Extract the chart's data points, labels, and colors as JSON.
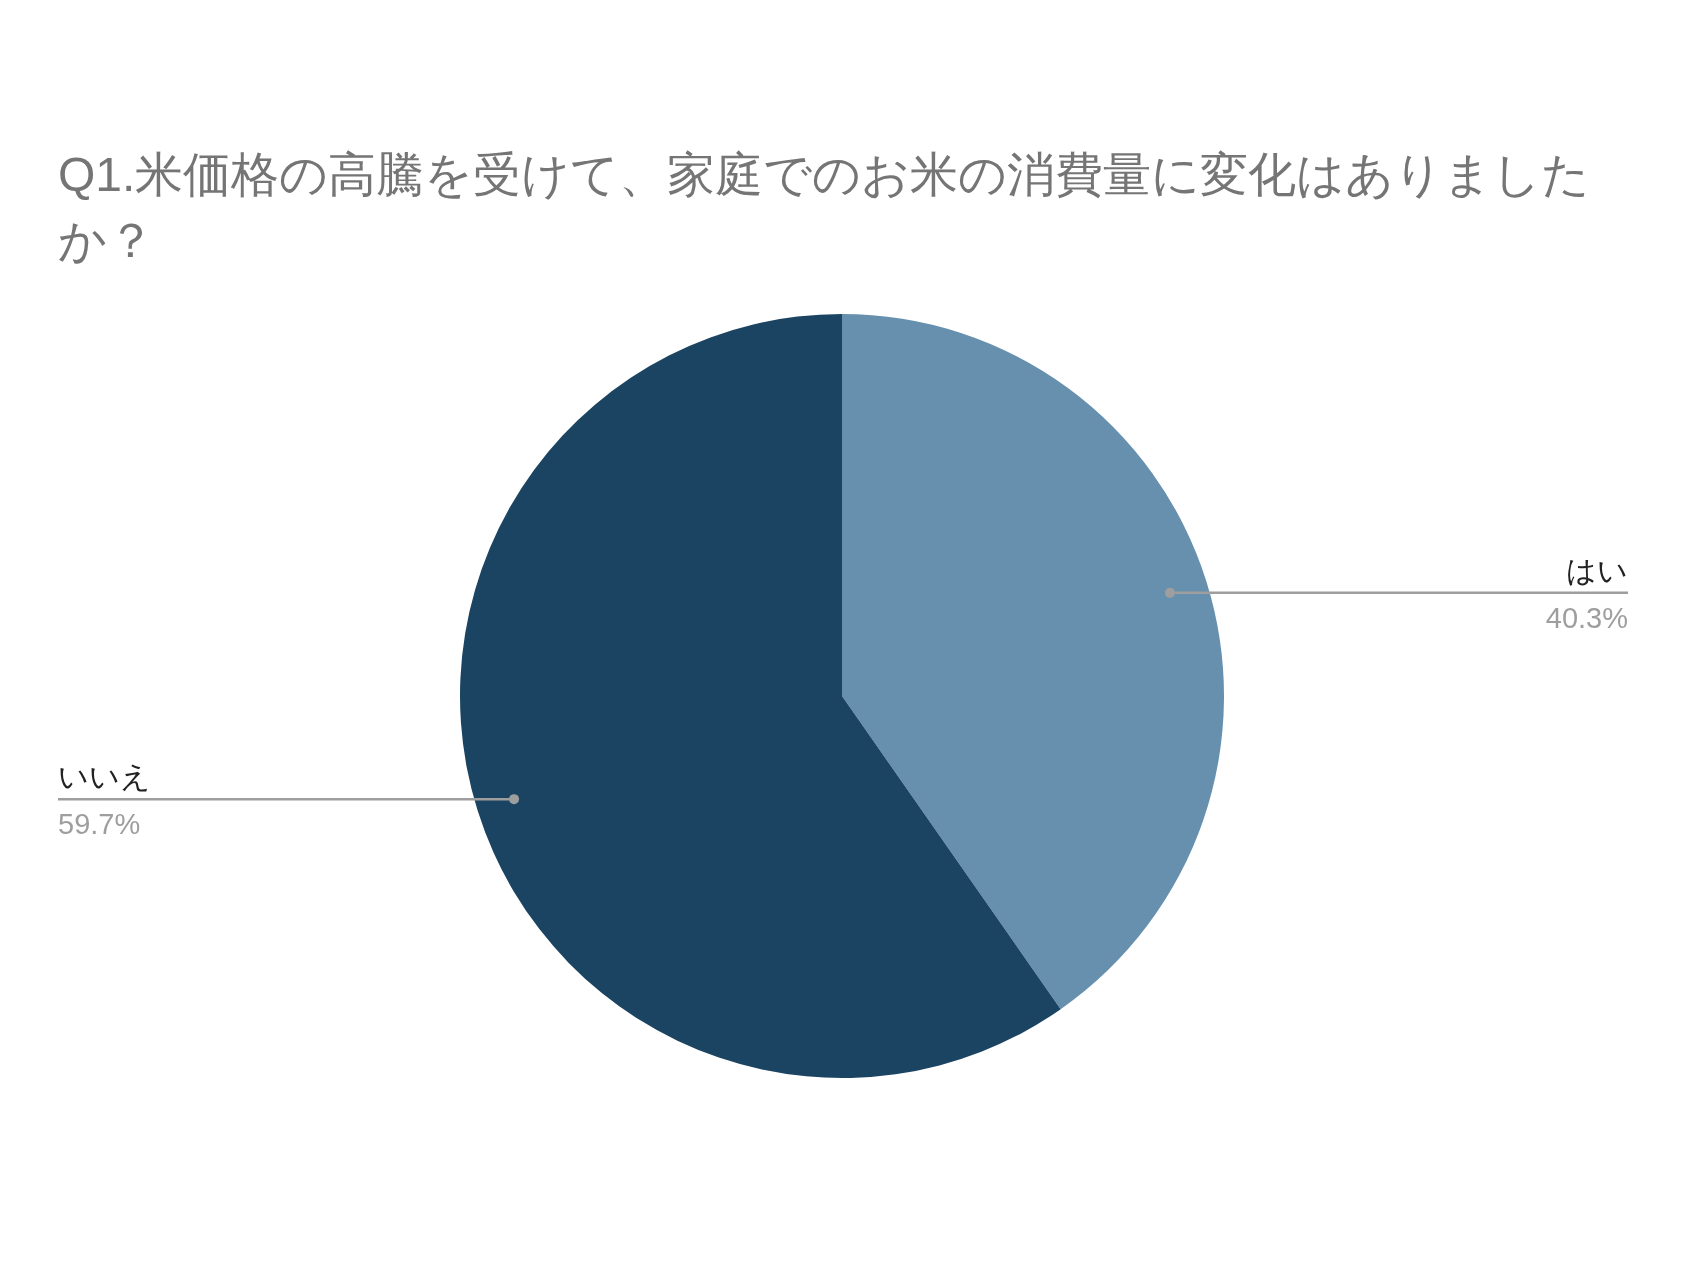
{
  "chart_data": {
    "type": "pie",
    "title": "Q1.米価格の高騰を受けて、家庭でのお米の消費量に変化はありましたか？",
    "categories": [
      "はい",
      "いいえ"
    ],
    "values": [
      40.3,
      59.7
    ],
    "colors": [
      "#6690ae",
      "#1b4462"
    ],
    "value_labels": [
      "40.3%",
      "59.7%"
    ]
  }
}
